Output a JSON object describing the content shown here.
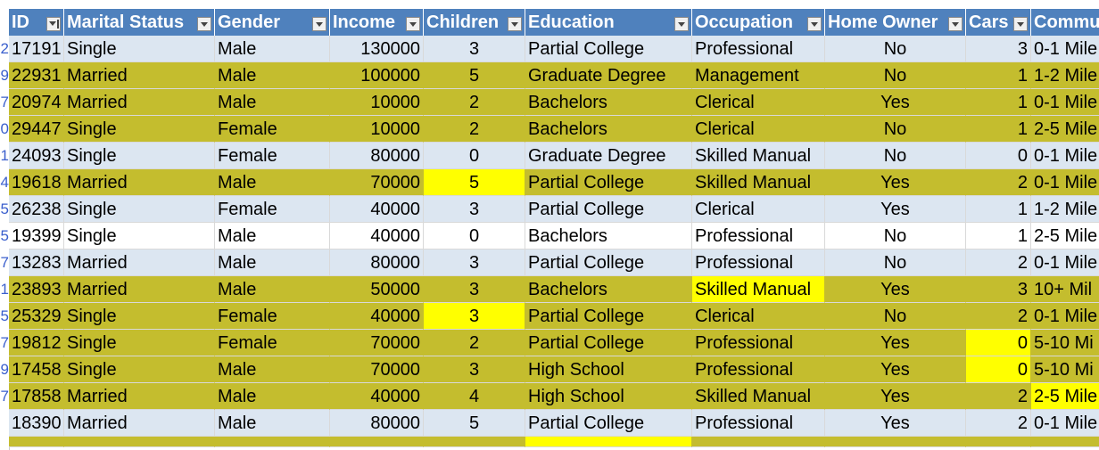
{
  "colors": {
    "header_bg": "#4f81bd",
    "row_light": "#dce6f1",
    "row_olive": "#c4bd2e",
    "row_white": "#ffffff",
    "highlight": "#ffff00",
    "row_number_text": "#3a5fcd"
  },
  "icons": {
    "filter": "filter-dropdown-icon",
    "filter_active": "filter-active-icon"
  },
  "row_numbers": [
    "",
    "2",
    "9",
    "7",
    "0",
    "1",
    "4",
    "5",
    "5",
    "7",
    "1",
    "5",
    "7",
    "9",
    "7"
  ],
  "headers": [
    "ID",
    "Marital Status",
    "Gender",
    "Income",
    "Children",
    "Education",
    "Occupation",
    "Home Owner",
    "Cars",
    "Commu"
  ],
  "rows": [
    {
      "style": "light",
      "cells": [
        "17191",
        "Single",
        "Male",
        "130000",
        "3",
        "Partial College",
        "Professional",
        "No",
        "3",
        "0-1 Mile"
      ],
      "highlight": []
    },
    {
      "style": "olive",
      "cells": [
        "22931",
        "Married",
        "Male",
        "100000",
        "5",
        "Graduate Degree",
        "Management",
        "No",
        "1",
        "1-2 Mile"
      ],
      "highlight": []
    },
    {
      "style": "olive",
      "cells": [
        "20974",
        "Married",
        "Male",
        "10000",
        "2",
        "Bachelors",
        "Clerical",
        "Yes",
        "1",
        "0-1 Mile"
      ],
      "highlight": []
    },
    {
      "style": "olive",
      "cells": [
        "29447",
        "Single",
        "Female",
        "10000",
        "2",
        "Bachelors",
        "Clerical",
        "No",
        "1",
        "2-5 Mile"
      ],
      "highlight": []
    },
    {
      "style": "light",
      "cells": [
        "24093",
        "Single",
        "Female",
        "80000",
        "0",
        "Graduate Degree",
        "Skilled Manual",
        "No",
        "0",
        "0-1 Mile"
      ],
      "highlight": []
    },
    {
      "style": "olive",
      "cells": [
        "19618",
        "Married",
        "Male",
        "70000",
        "5",
        "Partial College",
        "Skilled Manual",
        "Yes",
        "2",
        "0-1 Mile"
      ],
      "highlight": [
        4
      ]
    },
    {
      "style": "light",
      "cells": [
        "26238",
        "Single",
        "Female",
        "40000",
        "3",
        "Partial College",
        "Clerical",
        "Yes",
        "1",
        "1-2 Mile"
      ],
      "highlight": []
    },
    {
      "style": "white",
      "cells": [
        "19399",
        "Single",
        "Male",
        "40000",
        "0",
        "Bachelors",
        "Professional",
        "No",
        "1",
        "2-5 Mile"
      ],
      "highlight": []
    },
    {
      "style": "light",
      "cells": [
        "13283",
        "Married",
        "Male",
        "80000",
        "3",
        "Partial College",
        "Professional",
        "No",
        "2",
        "0-1 Mile"
      ],
      "highlight": []
    },
    {
      "style": "olive",
      "cells": [
        "23893",
        "Married",
        "Male",
        "50000",
        "3",
        "Bachelors",
        "Skilled Manual",
        "Yes",
        "3",
        "10+ Mil"
      ],
      "highlight": [
        6
      ]
    },
    {
      "style": "olive",
      "cells": [
        "25329",
        "Single",
        "Female",
        "40000",
        "3",
        "Partial College",
        "Clerical",
        "No",
        "2",
        "0-1 Mile"
      ],
      "highlight": [
        4
      ]
    },
    {
      "style": "olive",
      "cells": [
        "19812",
        "Single",
        "Female",
        "70000",
        "2",
        "Partial College",
        "Professional",
        "Yes",
        "0",
        "5-10 Mi"
      ],
      "highlight": [
        8
      ]
    },
    {
      "style": "olive",
      "cells": [
        "17458",
        "Single",
        "Male",
        "70000",
        "3",
        "High School",
        "Professional",
        "Yes",
        "0",
        "5-10 Mi"
      ],
      "highlight": [
        8
      ]
    },
    {
      "style": "olive",
      "cells": [
        "17858",
        "Married",
        "Male",
        "40000",
        "4",
        "High School",
        "Skilled Manual",
        "Yes",
        "2",
        "2-5 Mile"
      ],
      "highlight": [
        9
      ]
    },
    {
      "style": "light",
      "cells": [
        "18390",
        "Married",
        "Male",
        "80000",
        "5",
        "Partial College",
        "Professional",
        "Yes",
        "2",
        "0-1 Mile"
      ],
      "highlight": []
    }
  ]
}
